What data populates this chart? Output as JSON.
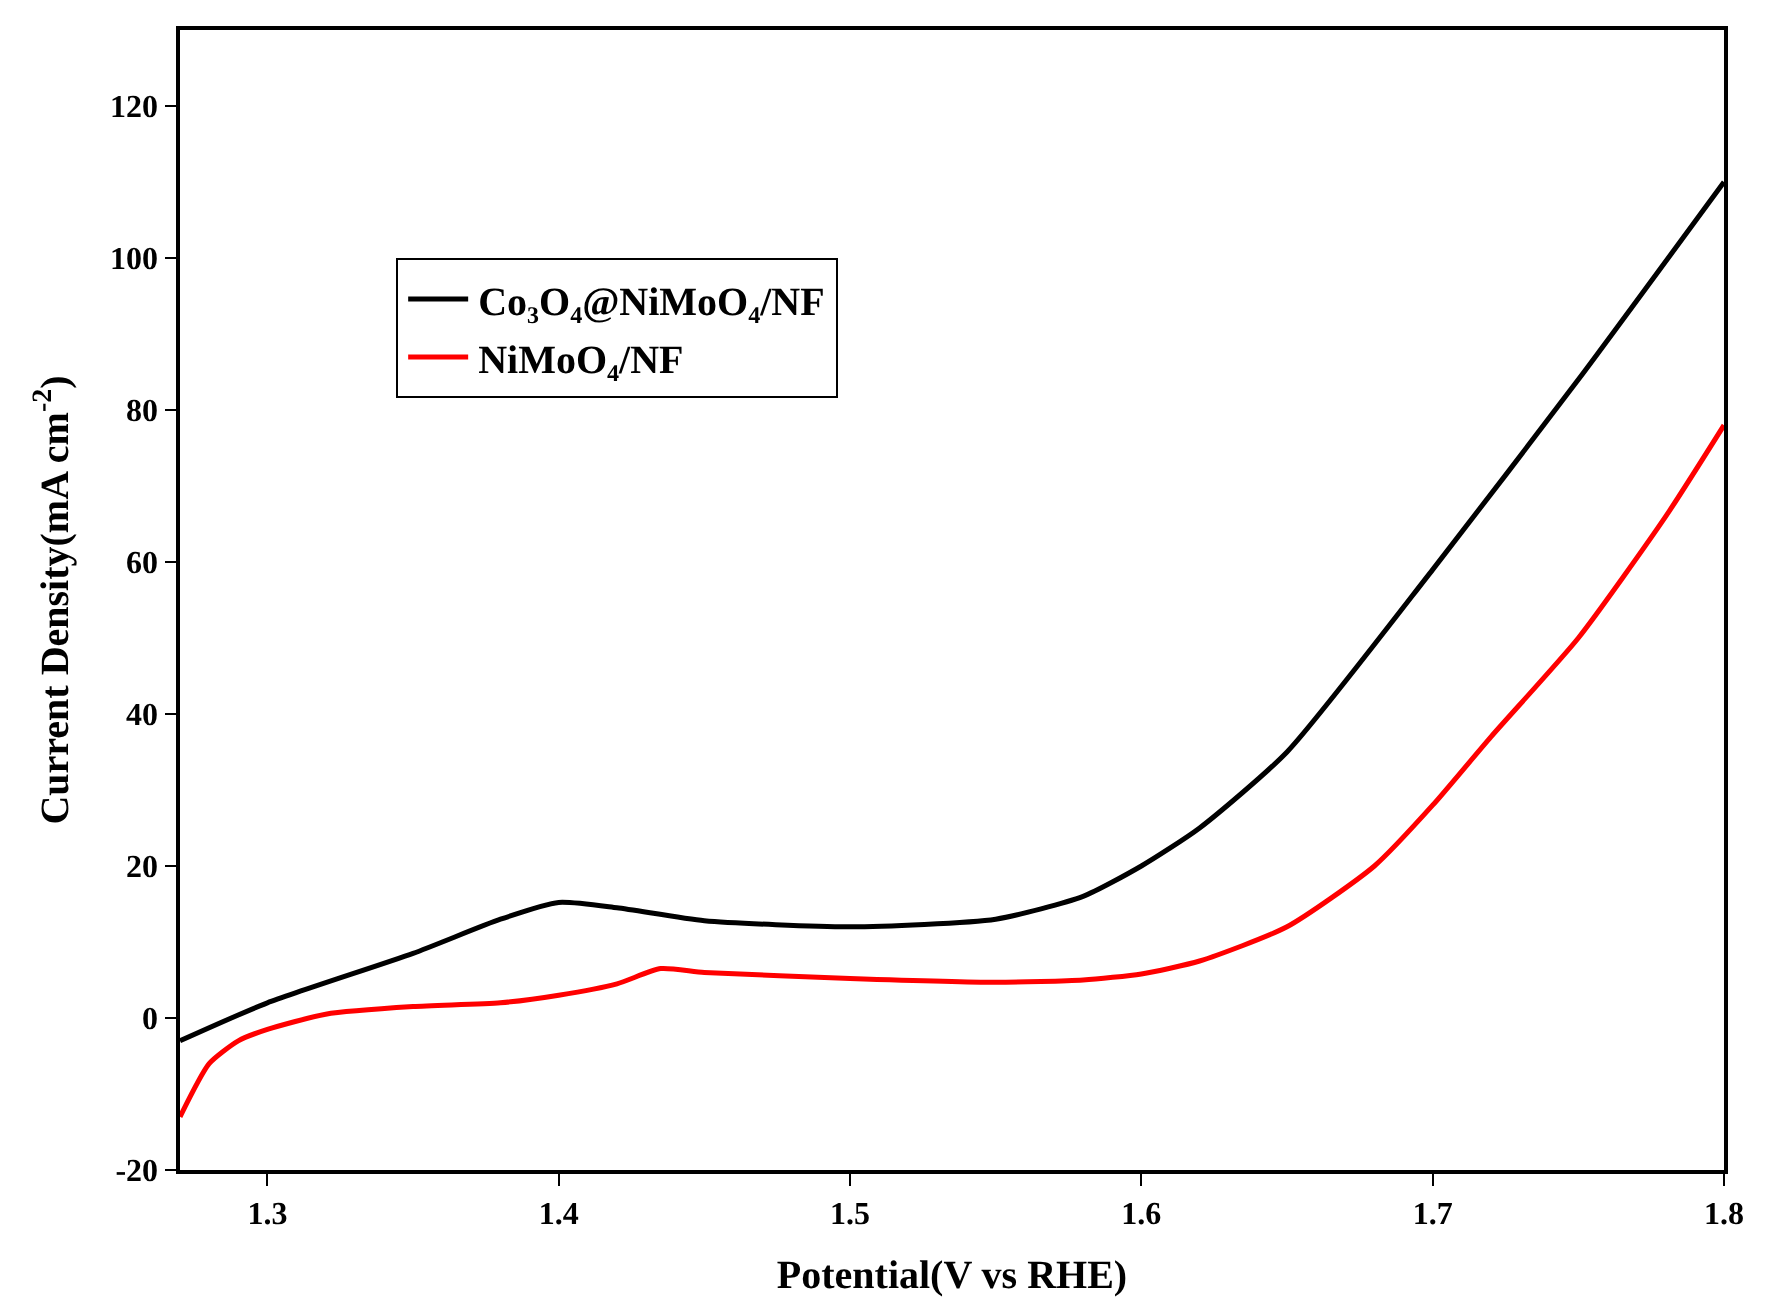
{
  "chart_data": {
    "type": "line",
    "xlabel": "Potential(V vs RHE)",
    "ylabel": "Current Density(mA cm$^{-2}$)",
    "xlim": [
      1.27,
      1.8
    ],
    "xticks": [
      1.3,
      1.4,
      1.5,
      1.6,
      1.7,
      1.8
    ],
    "ylim": [
      -20,
      130
    ],
    "yticks": [
      -20,
      0,
      20,
      40,
      60,
      80,
      100,
      120
    ],
    "legend": "top",
    "marker": "none",
    "line_style": "solid",
    "series": [
      {
        "name": "Co₃O₄@NiMoO₄/NF",
        "color": "#000000",
        "x": [
          1.27,
          1.3,
          1.35,
          1.38,
          1.4,
          1.42,
          1.45,
          1.5,
          1.55,
          1.58,
          1.6,
          1.62,
          1.65,
          1.7,
          1.75,
          1.8
        ],
        "values": [
          -3,
          2,
          8.5,
          13,
          15.2,
          14.5,
          12.8,
          12,
          13,
          16,
          20,
          25,
          35,
          59,
          84,
          110
        ]
      },
      {
        "name": "NiMoO₄/NF",
        "color": "#ff0000",
        "x": [
          1.27,
          1.28,
          1.29,
          1.3,
          1.32,
          1.35,
          1.38,
          1.4,
          1.42,
          1.435,
          1.45,
          1.5,
          1.55,
          1.58,
          1.6,
          1.62,
          1.65,
          1.68,
          1.7,
          1.72,
          1.75,
          1.78,
          1.8
        ],
        "values": [
          -13,
          -6,
          -3,
          -1.5,
          0.5,
          1.5,
          2,
          3,
          4.5,
          6.5,
          6,
          5.2,
          4.7,
          5,
          5.8,
          7.5,
          12,
          20,
          28,
          37,
          50,
          66,
          78
        ]
      }
    ]
  }
}
